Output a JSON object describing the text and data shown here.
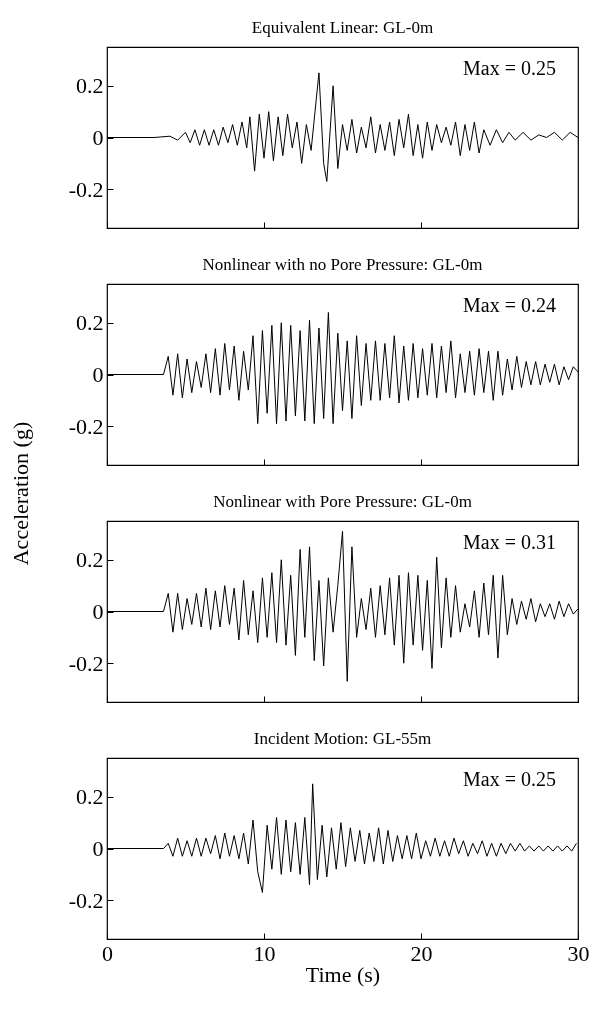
{
  "chart_data": [
    {
      "type": "line",
      "title": "Equivalent Linear: GL-0m",
      "annotations": [
        "Max = 0.25"
      ],
      "xlim": [
        0,
        30
      ],
      "xticks": [
        0,
        10,
        20,
        30
      ],
      "ylim": [
        -0.35,
        0.35
      ],
      "yticks": [
        -0.2,
        0,
        0.2
      ],
      "tick_labels": "y",
      "series": [
        {
          "color": "#000000",
          "x": [
            0,
            3,
            4,
            4.5,
            5,
            5.3,
            5.6,
            5.9,
            6.2,
            6.5,
            6.8,
            7.1,
            7.4,
            7.7,
            8,
            8.3,
            8.6,
            8.9,
            9.1,
            9.4,
            9.7,
            10,
            10.3,
            10.6,
            10.9,
            11.2,
            11.5,
            11.8,
            12.1,
            12.4,
            12.7,
            13.0,
            13.5,
            13.8,
            14.0,
            14.4,
            14.7,
            15.0,
            15.3,
            15.6,
            15.9,
            16.2,
            16.5,
            16.8,
            17.1,
            17.4,
            17.7,
            18.0,
            18.3,
            18.6,
            18.9,
            19.2,
            19.5,
            19.8,
            20.1,
            20.4,
            20.7,
            21,
            21.3,
            21.6,
            21.9,
            22.2,
            22.5,
            22.8,
            23.1,
            23.4,
            23.7,
            24,
            24.4,
            24.8,
            25.2,
            25.6,
            26,
            26.5,
            27,
            27.5,
            28,
            28.5,
            29,
            29.5,
            30
          ],
          "values": [
            0,
            0,
            0.005,
            -0.01,
            0.02,
            -0.02,
            0.03,
            -0.03,
            0.03,
            -0.03,
            0.03,
            -0.03,
            0.04,
            -0.02,
            0.05,
            -0.03,
            0.06,
            -0.04,
            0.08,
            -0.13,
            0.09,
            -0.08,
            0.1,
            -0.09,
            0.08,
            -0.07,
            0.09,
            -0.04,
            0.06,
            -0.1,
            0.05,
            -0.05,
            0.25,
            -0.1,
            -0.17,
            0.2,
            -0.12,
            0.05,
            -0.05,
            0.07,
            -0.06,
            0.04,
            -0.04,
            0.08,
            -0.06,
            0.05,
            -0.05,
            0.06,
            -0.07,
            0.07,
            -0.04,
            0.09,
            -0.07,
            0.05,
            -0.08,
            0.06,
            -0.05,
            0.05,
            -0.02,
            0.04,
            -0.03,
            0.06,
            -0.07,
            0.05,
            -0.05,
            0.06,
            -0.06,
            0.03,
            -0.03,
            0.03,
            -0.02,
            0.02,
            -0.01,
            0.02,
            -0.01,
            0.01,
            0,
            0.02,
            -0.01,
            0.02,
            0
          ]
        }
      ]
    },
    {
      "type": "line",
      "title": "Nonlinear with no Pore Pressure: GL-0m",
      "ylabel": "Acceleration (g)",
      "annotations": [
        "Max = 0.24"
      ],
      "xlim": [
        0,
        30
      ],
      "xticks": [
        0,
        10,
        20,
        30
      ],
      "ylim": [
        -0.35,
        0.35
      ],
      "yticks": [
        -0.2,
        0,
        0.2
      ],
      "tick_labels": "y",
      "series": [
        {
          "color": "#000000",
          "x": [
            0,
            3.6,
            3.9,
            4.2,
            4.5,
            4.8,
            5.1,
            5.4,
            5.7,
            6.0,
            6.3,
            6.6,
            6.9,
            7.2,
            7.5,
            7.8,
            8.1,
            8.4,
            8.7,
            9.0,
            9.3,
            9.6,
            9.9,
            10.2,
            10.5,
            10.8,
            11.1,
            11.4,
            11.7,
            12.0,
            12.3,
            12.6,
            12.9,
            13.2,
            13.5,
            13.8,
            14.1,
            14.4,
            14.7,
            15.0,
            15.3,
            15.6,
            15.9,
            16.2,
            16.5,
            16.8,
            17.1,
            17.4,
            17.7,
            18.0,
            18.3,
            18.6,
            18.9,
            19.2,
            19.5,
            19.8,
            20.1,
            20.4,
            20.7,
            21.0,
            21.3,
            21.6,
            21.9,
            22.2,
            22.5,
            22.8,
            23.1,
            23.4,
            23.7,
            24.0,
            24.3,
            24.6,
            24.9,
            25.2,
            25.5,
            25.8,
            26.1,
            26.4,
            26.7,
            27.0,
            27.3,
            27.6,
            27.9,
            28.2,
            28.5,
            28.8,
            29.1,
            29.4,
            29.7,
            30
          ],
          "values": [
            0,
            0,
            0.07,
            -0.08,
            0.08,
            -0.09,
            0.06,
            -0.07,
            0.05,
            -0.05,
            0.08,
            -0.07,
            0.1,
            -0.08,
            0.12,
            -0.06,
            0.11,
            -0.1,
            0.09,
            -0.06,
            0.15,
            -0.19,
            0.17,
            -0.15,
            0.19,
            -0.19,
            0.2,
            -0.18,
            0.19,
            -0.16,
            0.17,
            -0.18,
            0.21,
            -0.19,
            0.18,
            -0.17,
            0.24,
            -0.19,
            0.16,
            -0.14,
            0.13,
            -0.17,
            0.15,
            -0.12,
            0.12,
            -0.1,
            0.13,
            -0.1,
            0.12,
            -0.09,
            0.15,
            -0.11,
            0.11,
            -0.1,
            0.12,
            -0.09,
            0.1,
            -0.08,
            0.12,
            -0.09,
            0.11,
            -0.07,
            0.13,
            -0.09,
            0.08,
            -0.07,
            0.09,
            -0.08,
            0.1,
            -0.07,
            0.09,
            -0.1,
            0.09,
            -0.08,
            0.06,
            -0.06,
            0.07,
            -0.05,
            0.05,
            -0.04,
            0.05,
            -0.04,
            0.04,
            -0.03,
            0.04,
            -0.04,
            0.03,
            -0.02,
            0.03,
            0.01
          ]
        }
      ]
    },
    {
      "type": "line",
      "title": "Nonlinear with Pore Pressure: GL-0m",
      "annotations": [
        "Max = 0.31"
      ],
      "xlim": [
        0,
        30
      ],
      "xticks": [
        0,
        10,
        20,
        30
      ],
      "ylim": [
        -0.35,
        0.35
      ],
      "yticks": [
        -0.2,
        0,
        0.2
      ],
      "tick_labels": "y",
      "series": [
        {
          "color": "#000000",
          "x": [
            0,
            3.6,
            3.9,
            4.2,
            4.5,
            4.8,
            5.1,
            5.4,
            5.7,
            6.0,
            6.3,
            6.6,
            6.9,
            7.2,
            7.5,
            7.8,
            8.1,
            8.4,
            8.7,
            9.0,
            9.3,
            9.6,
            9.9,
            10.2,
            10.5,
            10.8,
            11.1,
            11.4,
            11.7,
            12.0,
            12.3,
            12.6,
            12.9,
            13.2,
            13.5,
            13.8,
            14.1,
            14.4,
            14.7,
            15.0,
            15.3,
            15.6,
            15.9,
            16.2,
            16.5,
            16.8,
            17.1,
            17.4,
            17.7,
            18.0,
            18.3,
            18.6,
            18.9,
            19.2,
            19.5,
            19.8,
            20.1,
            20.4,
            20.7,
            21.0,
            21.3,
            21.6,
            21.9,
            22.2,
            22.5,
            22.8,
            23.1,
            23.4,
            23.7,
            24.0,
            24.3,
            24.6,
            24.9,
            25.2,
            25.5,
            25.8,
            26.1,
            26.4,
            26.7,
            27.0,
            27.3,
            27.6,
            27.9,
            28.2,
            28.5,
            28.8,
            29.1,
            29.4,
            29.7,
            30
          ],
          "values": [
            0,
            0,
            0.07,
            -0.08,
            0.07,
            -0.07,
            0.05,
            -0.05,
            0.07,
            -0.06,
            0.09,
            -0.07,
            0.08,
            -0.06,
            0.1,
            -0.05,
            0.09,
            -0.11,
            0.12,
            -0.09,
            0.08,
            -0.12,
            0.13,
            -0.1,
            0.15,
            -0.12,
            0.2,
            -0.13,
            0.14,
            -0.17,
            0.24,
            -0.1,
            0.25,
            -0.19,
            0.12,
            -0.21,
            0.13,
            -0.08,
            0.1,
            0.31,
            -0.27,
            0.25,
            -0.1,
            0.05,
            -0.07,
            0.09,
            -0.1,
            0.1,
            -0.09,
            0.13,
            -0.13,
            0.14,
            -0.2,
            0.15,
            -0.13,
            0.14,
            -0.15,
            0.12,
            -0.22,
            0.21,
            -0.14,
            0.13,
            -0.1,
            0.1,
            -0.08,
            0.03,
            -0.06,
            0.08,
            -0.1,
            0.11,
            -0.09,
            0.14,
            -0.18,
            0.14,
            -0.09,
            0.05,
            -0.05,
            0.04,
            -0.03,
            0.05,
            -0.04,
            0.03,
            -0.02,
            0.03,
            -0.03,
            0.04,
            -0.02,
            0.03,
            -0.01,
            0.01
          ]
        }
      ]
    },
    {
      "type": "line",
      "title": "Incident Motion: GL-55m",
      "xlabel": "Time (s)",
      "annotations": [
        "Max = 0.25"
      ],
      "xlim": [
        0,
        30
      ],
      "xticks": [
        0,
        10,
        20,
        30
      ],
      "ylim": [
        -0.35,
        0.35
      ],
      "yticks": [
        -0.2,
        0,
        0.2
      ],
      "series": [
        {
          "color": "#000000",
          "x": [
            0,
            3.6,
            3.9,
            4.2,
            4.5,
            4.8,
            5.1,
            5.4,
            5.7,
            6.0,
            6.3,
            6.6,
            6.9,
            7.2,
            7.5,
            7.8,
            8.1,
            8.4,
            8.7,
            9.0,
            9.3,
            9.6,
            9.9,
            10.2,
            10.5,
            10.8,
            11.1,
            11.4,
            11.7,
            12.0,
            12.3,
            12.6,
            12.9,
            13.1,
            13.4,
            13.7,
            14.0,
            14.3,
            14.6,
            14.9,
            15.2,
            15.5,
            15.8,
            16.1,
            16.4,
            16.7,
            17.0,
            17.3,
            17.6,
            17.9,
            18.2,
            18.5,
            18.8,
            19.1,
            19.4,
            19.7,
            20.0,
            20.3,
            20.6,
            20.9,
            21.2,
            21.5,
            21.8,
            22.1,
            22.4,
            22.7,
            23.0,
            23.3,
            23.6,
            23.9,
            24.2,
            24.5,
            24.8,
            25.1,
            25.4,
            25.7,
            26.0,
            26.3,
            26.6,
            26.9,
            27.2,
            27.5,
            27.8,
            28.1,
            28.4,
            28.7,
            29.0,
            29.3,
            29.6,
            29.9
          ],
          "values": [
            0,
            0,
            0.02,
            -0.03,
            0.04,
            -0.03,
            0.03,
            -0.03,
            0.04,
            -0.03,
            0.04,
            -0.02,
            0.05,
            -0.04,
            0.06,
            -0.03,
            0.05,
            -0.04,
            0.06,
            -0.06,
            0.11,
            -0.09,
            -0.17,
            0.09,
            -0.08,
            0.12,
            -0.1,
            0.11,
            -0.09,
            0.1,
            -0.1,
            0.12,
            -0.14,
            0.25,
            -0.12,
            0.09,
            -0.11,
            0.08,
            -0.08,
            0.1,
            -0.07,
            0.08,
            -0.05,
            0.07,
            -0.06,
            0.06,
            -0.05,
            0.08,
            -0.06,
            0.07,
            -0.05,
            0.05,
            -0.04,
            0.05,
            -0.04,
            0.06,
            -0.04,
            0.03,
            -0.03,
            0.04,
            -0.03,
            0.03,
            -0.03,
            0.04,
            -0.02,
            0.03,
            -0.03,
            0.02,
            -0.02,
            0.03,
            -0.03,
            0.02,
            -0.03,
            0.02,
            -0.02,
            0.02,
            -0.01,
            0.02,
            -0.01,
            0.01,
            -0.01,
            0.01,
            -0.01,
            0.01,
            -0.01,
            0.01,
            -0.01,
            0.01,
            -0.01,
            0.02
          ]
        }
      ]
    }
  ]
}
